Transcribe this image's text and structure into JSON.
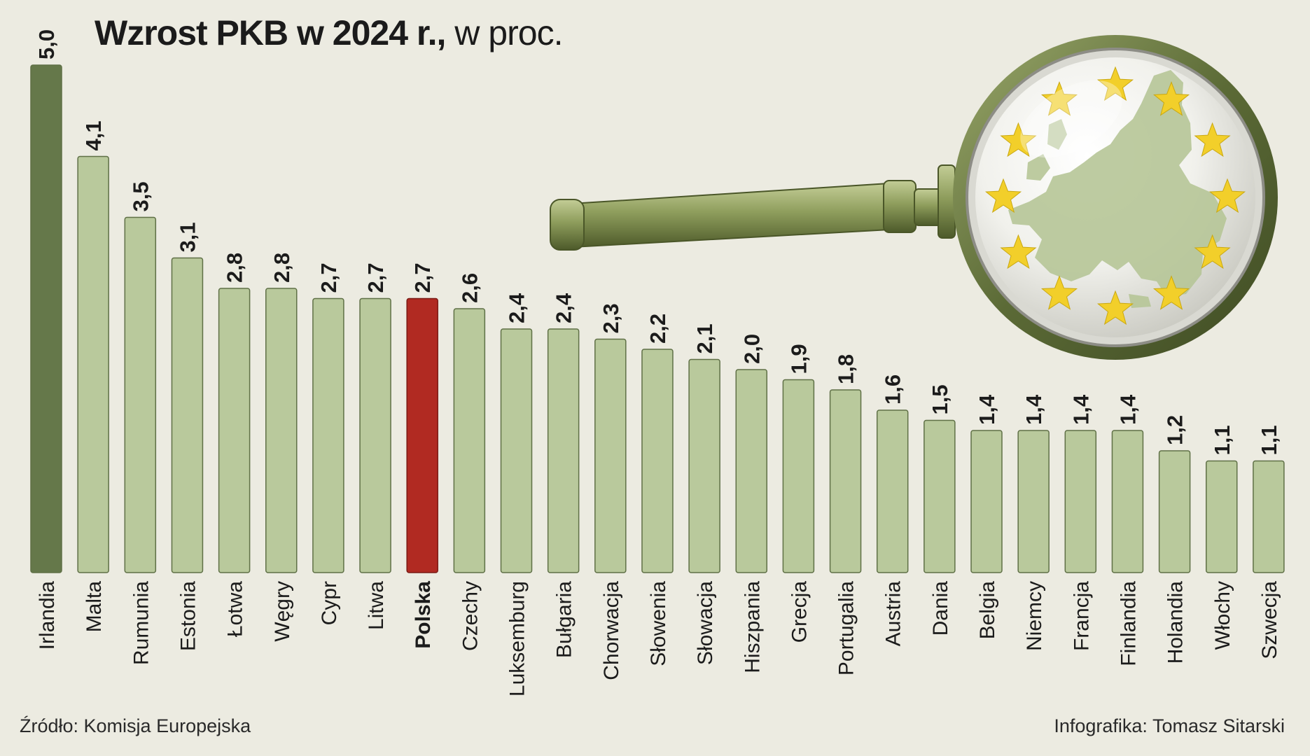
{
  "title_bold": "Wzrost PKB w 2024 r.,",
  "title_unit": "w proc.",
  "source": "Źródło: Komisja Europejska",
  "credit": "Infografika: Tomasz Sitarski",
  "colors": {
    "background": "#ecebe1",
    "bar_default": "#b9c99c",
    "bar_leader": "#65784a",
    "bar_highlight": "#b12a22",
    "bar_stroke": "#5f7046",
    "text": "#1b1b1b"
  },
  "chart_data": {
    "type": "bar",
    "orientation": "vertical",
    "categories": [
      "Irlandia",
      "Malta",
      "Rumunia",
      "Estonia",
      "Łotwa",
      "Węgry",
      "Cypr",
      "Litwa",
      "Polska",
      "Czechy",
      "Luksemburg",
      "Bułgaria",
      "Chorwacja",
      "Słowenia",
      "Słowacja",
      "Hiszpania",
      "Grecja",
      "Portugalia",
      "Austria",
      "Dania",
      "Belgia",
      "Niemcy",
      "Francja",
      "Finlandia",
      "Holandia",
      "Włochy",
      "Szwecja"
    ],
    "values": [
      5.0,
      4.1,
      3.5,
      3.1,
      2.8,
      2.8,
      2.7,
      2.7,
      2.7,
      2.6,
      2.4,
      2.4,
      2.3,
      2.2,
      2.1,
      2.0,
      1.9,
      1.8,
      1.6,
      1.5,
      1.4,
      1.4,
      1.4,
      1.4,
      1.2,
      1.1,
      1.1
    ],
    "value_labels": [
      "5,0",
      "4,1",
      "3,5",
      "3,1",
      "2,8",
      "2,8",
      "2,7",
      "2,7",
      "2,7",
      "2,6",
      "2,4",
      "2,4",
      "2,3",
      "2,2",
      "2,1",
      "2,0",
      "1,9",
      "1,8",
      "1,6",
      "1,5",
      "1,4",
      "1,4",
      "1,4",
      "1,4",
      "1,2",
      "1,1",
      "1,1"
    ],
    "highlight": "Polska",
    "leader": "Irlandia",
    "ylim": [
      0,
      5.0
    ],
    "grid": false,
    "legend": "none"
  },
  "illustration": {
    "name": "magnifying-glass-eu-map",
    "star_count": 12,
    "star_color": "#f2cf2a",
    "handle_color": "#8b9a5e",
    "map_color": "#b6c597"
  }
}
